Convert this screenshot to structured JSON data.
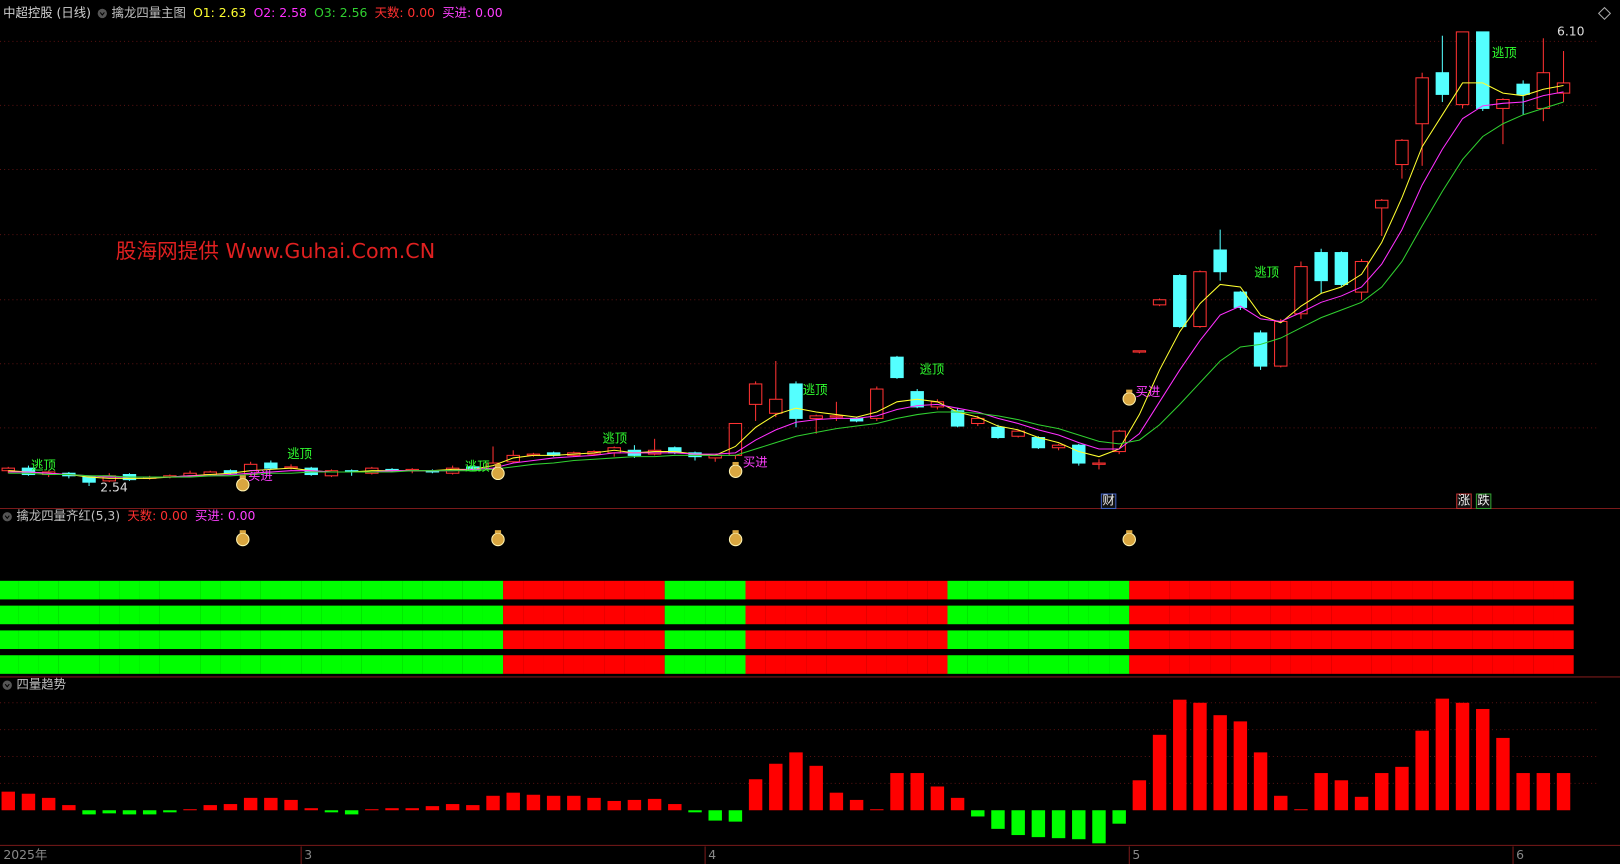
{
  "chart_data": [
    {
      "type": "candlestick",
      "title": "擒龙四量主图",
      "symbol": "中超控股 (日线)",
      "header_labels": [
        {
          "text": "天数: 0.00",
          "color": "#ff3030"
        },
        {
          "text": "买进: 0.00",
          "color": "#ff40ff"
        }
      ],
      "ylim": [
        2.38,
        6.35
      ],
      "up_color": "#ff3232",
      "down_color": "#54ffff",
      "open": [
        2.66,
        2.68,
        2.63,
        2.64,
        2.61,
        2.58,
        2.63,
        2.6,
        2.61,
        2.62,
        2.63,
        2.66,
        2.63,
        2.72,
        2.68,
        2.68,
        2.62,
        2.66,
        2.64,
        2.67,
        2.66,
        2.66,
        2.64,
        2.69,
        2.67,
        2.73,
        2.78,
        2.8,
        2.78,
        2.79,
        2.8,
        2.82,
        2.79,
        2.84,
        2.8,
        2.76,
        2.78,
        3.18,
        3.11,
        3.34,
        3.07,
        3.08,
        3.07,
        3.07,
        3.55,
        3.28,
        3.16,
        3.13,
        3.03,
        3.0,
        2.93,
        2.92,
        2.84,
        2.86,
        2.71,
        2.81,
        3.59,
        3.96,
        4.19,
        3.79,
        4.39,
        4.06,
        3.74,
        3.48,
        3.89,
        4.37,
        4.37,
        4.06,
        4.72,
        5.06,
        5.38,
        5.78,
        5.53,
        6.1,
        5.5,
        5.69,
        5.5,
        5.62
      ],
      "high": [
        2.69,
        2.7,
        2.66,
        2.65,
        2.62,
        2.64,
        2.64,
        2.62,
        2.63,
        2.66,
        2.66,
        2.67,
        2.73,
        2.74,
        2.71,
        2.69,
        2.67,
        2.67,
        2.69,
        2.68,
        2.68,
        2.67,
        2.7,
        2.7,
        2.85,
        2.82,
        2.8,
        2.81,
        2.81,
        2.82,
        2.85,
        2.86,
        2.91,
        2.85,
        2.81,
        2.79,
        3.03,
        3.36,
        3.52,
        3.36,
        3.1,
        3.2,
        3.08,
        3.32,
        3.56,
        3.3,
        3.22,
        3.15,
        3.09,
        3.02,
        2.98,
        2.93,
        2.87,
        2.87,
        2.75,
        2.98,
        3.6,
        4.01,
        4.2,
        4.23,
        4.55,
        4.07,
        3.76,
        3.85,
        4.3,
        4.4,
        4.38,
        4.32,
        4.79,
        5.26,
        5.78,
        6.07,
        6.1,
        6.1,
        5.58,
        5.72,
        6.05,
        5.95
      ],
      "low": [
        2.64,
        2.62,
        2.61,
        2.6,
        2.54,
        2.57,
        2.58,
        2.59,
        2.6,
        2.61,
        2.62,
        2.63,
        2.62,
        2.67,
        2.67,
        2.62,
        2.61,
        2.62,
        2.63,
        2.65,
        2.64,
        2.64,
        2.63,
        2.66,
        2.66,
        2.72,
        2.77,
        2.77,
        2.77,
        2.78,
        2.77,
        2.76,
        2.78,
        2.79,
        2.74,
        2.73,
        2.75,
        3.05,
        3.08,
        3.0,
        2.95,
        3.05,
        3.04,
        3.05,
        3.38,
        3.15,
        3.14,
        3.0,
        3.01,
        2.91,
        2.92,
        2.83,
        2.82,
        2.7,
        2.67,
        2.79,
        3.58,
        3.95,
        3.78,
        3.78,
        4.15,
        3.92,
        3.45,
        3.47,
        3.85,
        4.05,
        4.1,
        4.0,
        4.5,
        4.95,
        5.05,
        5.55,
        5.5,
        5.48,
        5.22,
        5.45,
        5.4,
        5.55
      ],
      "close": [
        2.68,
        2.63,
        2.65,
        2.62,
        2.57,
        2.62,
        2.59,
        2.61,
        2.62,
        2.64,
        2.65,
        2.64,
        2.71,
        2.68,
        2.69,
        2.63,
        2.66,
        2.65,
        2.68,
        2.66,
        2.67,
        2.65,
        2.68,
        2.67,
        2.72,
        2.78,
        2.79,
        2.78,
        2.8,
        2.81,
        2.84,
        2.78,
        2.82,
        2.8,
        2.77,
        2.78,
        3.03,
        3.34,
        3.22,
        3.07,
        3.09,
        3.09,
        3.05,
        3.3,
        3.39,
        3.16,
        3.2,
        3.01,
        3.07,
        2.92,
        2.97,
        2.84,
        2.86,
        2.72,
        2.72,
        2.97,
        3.6,
        4.0,
        3.79,
        4.22,
        4.22,
        3.94,
        3.48,
        3.83,
        4.26,
        4.15,
        4.12,
        4.3,
        4.78,
        5.25,
        5.74,
        5.61,
        6.1,
        5.5,
        5.57,
        5.61,
        5.78,
        5.7
      ],
      "series": [
        {
          "name": "O1: 2.63",
          "color": "#ffff30",
          "values": [
            2.66,
            2.65,
            2.64,
            2.63,
            2.61,
            2.6,
            2.6,
            2.6,
            2.61,
            2.62,
            2.63,
            2.64,
            2.66,
            2.67,
            2.68,
            2.66,
            2.65,
            2.65,
            2.66,
            2.66,
            2.66,
            2.66,
            2.67,
            2.67,
            2.7,
            2.76,
            2.78,
            2.78,
            2.79,
            2.8,
            2.82,
            2.8,
            2.81,
            2.81,
            2.79,
            2.78,
            2.85,
            3.0,
            3.1,
            3.15,
            3.12,
            3.1,
            3.08,
            3.12,
            3.2,
            3.22,
            3.2,
            3.12,
            3.08,
            3.01,
            2.98,
            2.92,
            2.88,
            2.81,
            2.77,
            2.83,
            3.1,
            3.45,
            3.75,
            3.97,
            4.12,
            4.1,
            3.88,
            3.82,
            3.95,
            4.05,
            4.1,
            4.2,
            4.45,
            4.8,
            5.2,
            5.45,
            5.7,
            5.7,
            5.62,
            5.6,
            5.65,
            5.68
          ]
        },
        {
          "name": "O2: 2.58",
          "color": "#ff30ff",
          "values": [
            2.65,
            2.65,
            2.64,
            2.63,
            2.62,
            2.61,
            2.61,
            2.61,
            2.61,
            2.62,
            2.62,
            2.63,
            2.64,
            2.65,
            2.66,
            2.66,
            2.65,
            2.65,
            2.65,
            2.66,
            2.66,
            2.66,
            2.66,
            2.67,
            2.68,
            2.72,
            2.74,
            2.76,
            2.77,
            2.78,
            2.8,
            2.8,
            2.8,
            2.8,
            2.79,
            2.79,
            2.8,
            2.9,
            2.98,
            3.04,
            3.06,
            3.07,
            3.07,
            3.09,
            3.14,
            3.17,
            3.18,
            3.15,
            3.12,
            3.07,
            3.03,
            2.98,
            2.94,
            2.88,
            2.83,
            2.83,
            2.95,
            3.2,
            3.45,
            3.68,
            3.88,
            3.95,
            3.85,
            3.83,
            3.9,
            3.98,
            4.03,
            4.1,
            4.28,
            4.55,
            4.9,
            5.18,
            5.42,
            5.52,
            5.54,
            5.55,
            5.6,
            5.63
          ]
        },
        {
          "name": "O3: 2.56",
          "color": "#30d030",
          "values": [
            2.64,
            2.64,
            2.63,
            2.63,
            2.62,
            2.62,
            2.61,
            2.61,
            2.61,
            2.61,
            2.62,
            2.62,
            2.63,
            2.64,
            2.64,
            2.65,
            2.65,
            2.65,
            2.65,
            2.65,
            2.66,
            2.66,
            2.66,
            2.66,
            2.67,
            2.69,
            2.71,
            2.72,
            2.74,
            2.75,
            2.76,
            2.77,
            2.77,
            2.78,
            2.78,
            2.78,
            2.78,
            2.83,
            2.88,
            2.93,
            2.96,
            2.99,
            3.01,
            3.03,
            3.07,
            3.1,
            3.12,
            3.12,
            3.11,
            3.09,
            3.06,
            3.02,
            2.99,
            2.94,
            2.89,
            2.87,
            2.9,
            3.02,
            3.18,
            3.35,
            3.52,
            3.63,
            3.65,
            3.7,
            3.78,
            3.86,
            3.92,
            3.98,
            4.1,
            4.3,
            4.58,
            4.85,
            5.1,
            5.28,
            5.38,
            5.45,
            5.5,
            5.55
          ]
        }
      ],
      "high_label": {
        "value": 6.1,
        "label": "6.10"
      },
      "low_label": {
        "value": 2.54,
        "label": "2.54"
      },
      "watermark": "股海网提供 Www.Guhai.Com.CN",
      "annotations": [
        {
          "text": "逃顶",
          "color": "#30ff30"
        },
        {
          "text": "买进",
          "color": "#ff40ff"
        },
        {
          "text": "逃顶",
          "color": "#30ff30"
        },
        {
          "text": "逃顶",
          "color": "#30ff30"
        },
        {
          "text": "逃顶",
          "color": "#30ff30"
        },
        {
          "text": "逃顶",
          "color": "#30ff30"
        },
        {
          "text": "买进",
          "color": "#ff40ff"
        },
        {
          "text": "逃顶",
          "color": "#30ff30"
        },
        {
          "text": "买进",
          "color": "#ff40ff"
        },
        {
          "text": "逃顶",
          "color": "#30ff30"
        },
        {
          "text": "逃顶",
          "color": "#30ff30"
        }
      ],
      "markers": [
        "财",
        "涨",
        "跌"
      ]
    },
    {
      "type": "band",
      "title": "擒龙四量齐红(5,3)",
      "header_labels": [
        {
          "text": "天数: 0.00",
          "color": "#ff3030"
        },
        {
          "text": "买进: 0.00",
          "color": "#ff40ff"
        }
      ],
      "colors": [
        "#00ff00",
        "#ff0000"
      ],
      "values": [
        0,
        0,
        0,
        0,
        0,
        0,
        0,
        0,
        0,
        0,
        0,
        0,
        0,
        0,
        0,
        0,
        0,
        0,
        0,
        0,
        0,
        0,
        0,
        0,
        0,
        1,
        1,
        1,
        1,
        1,
        1,
        1,
        1,
        0,
        0,
        0,
        0,
        1,
        1,
        1,
        1,
        1,
        1,
        1,
        1,
        1,
        1,
        0,
        0,
        0,
        0,
        0,
        0,
        0,
        0,
        0,
        1,
        1,
        1,
        1,
        1,
        1,
        1,
        1,
        1,
        1,
        1,
        1,
        1,
        1,
        1,
        1,
        1,
        1,
        1,
        1,
        1,
        1
      ]
    },
    {
      "type": "bar",
      "title": "四量趋势",
      "ylim": [
        -4,
        12
      ],
      "up_color": "#ff0000",
      "down_color": "#00ff00",
      "values": [
        1.8,
        1.6,
        1.2,
        0.5,
        -0.4,
        -0.3,
        -0.4,
        -0.4,
        -0.2,
        0.1,
        0.5,
        0.6,
        1.2,
        1.2,
        1.0,
        0.2,
        -0.2,
        -0.4,
        0.1,
        0.2,
        0.2,
        0.4,
        0.6,
        0.5,
        1.4,
        1.7,
        1.5,
        1.4,
        1.4,
        1.2,
        0.9,
        1.0,
        1.1,
        0.6,
        -0.2,
        -1.0,
        -1.1,
        3.0,
        4.5,
        5.6,
        4.3,
        1.7,
        1.0,
        0.1,
        3.6,
        3.6,
        2.3,
        1.2,
        -0.6,
        -1.8,
        -2.4,
        -2.6,
        -2.7,
        -2.8,
        -3.2,
        -1.3,
        2.9,
        7.3,
        10.7,
        10.4,
        9.2,
        8.6,
        5.6,
        1.4,
        0.1,
        3.6,
        2.9,
        1.3,
        3.6,
        4.2,
        7.7,
        10.8,
        10.4,
        9.8,
        7.0,
        3.6,
        3.6,
        3.6
      ],
      "categories": [
        "2025年",
        null,
        null,
        null,
        null,
        null,
        null,
        null,
        null,
        null,
        null,
        null,
        null,
        null,
        null,
        "3",
        null,
        null,
        null,
        null,
        null,
        null,
        null,
        null,
        null,
        null,
        null,
        null,
        null,
        null,
        null,
        null,
        null,
        null,
        null,
        "4",
        null,
        null,
        null,
        null,
        null,
        null,
        null,
        null,
        null,
        null,
        null,
        null,
        null,
        null,
        null,
        null,
        null,
        null,
        null,
        null,
        "5",
        null,
        null,
        null,
        null,
        null,
        null,
        null,
        null,
        null,
        null,
        null,
        null,
        null,
        null,
        null,
        null,
        null,
        null,
        "6",
        null,
        null
      ]
    }
  ]
}
